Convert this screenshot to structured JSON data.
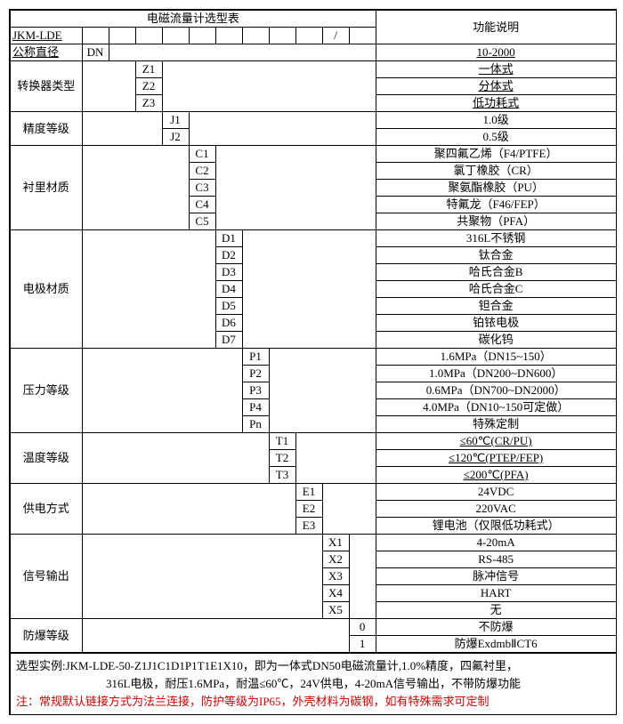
{
  "title": "电磁流量计选型表",
  "funcTitle": "功能说明",
  "model": "JKM-LDE",
  "slash": "/",
  "rows": [
    {
      "label": "公称直径",
      "labelUnd": true,
      "sub": "DN",
      "codes": [],
      "descs": [
        "10-2000"
      ],
      "col": 1
    },
    {
      "label": "转换器类型",
      "codes": [
        "Z1",
        "Z2",
        "Z3"
      ],
      "descs": [
        "一体式",
        "分体式",
        "低功耗式"
      ],
      "col": 2
    },
    {
      "label": "精度等级",
      "codes": [
        "J1",
        "J2"
      ],
      "descs": [
        "1.0级",
        "0.5级"
      ],
      "col": 3
    },
    {
      "label": "衬里材质",
      "codes": [
        "C1",
        "C2",
        "C3",
        "C4",
        "C5"
      ],
      "descs": [
        "聚四氟乙烯（F4/PTFE）",
        "氯丁橡胶（CR）",
        "聚氨酯橡胶（PU）",
        "特氟龙（F46/FEP）",
        "共聚物（PFA）"
      ],
      "col": 4
    },
    {
      "label": "电极材质",
      "codes": [
        "D1",
        "D2",
        "D3",
        "D4",
        "D5",
        "D6",
        "D7"
      ],
      "descs": [
        "316L不锈钢",
        "钛合金",
        "哈氏合金B",
        "哈氏合金C",
        "钽合金",
        "铂铱电极",
        "碳化钨"
      ],
      "col": 5
    },
    {
      "label": "压力等级",
      "codes": [
        "P1",
        "P2",
        "P3",
        "P4",
        "Pn"
      ],
      "descs": [
        "1.6MPa（DN15~150）",
        "1.0MPa（DN200~DN600）",
        "0.6MPa（DN700~DN2000）",
        "4.0MPa（DN10~150可定做）",
        "特殊定制"
      ],
      "col": 6
    },
    {
      "label": "温度等级",
      "codes": [
        "T1",
        "T2",
        "T3"
      ],
      "descs": [
        "≤60℃(CR/PU)",
        "≤120℃(PTEP/FEP)",
        "≤200℃(PFA)"
      ],
      "col": 7
    },
    {
      "label": "供电方式",
      "codes": [
        "E1",
        "E2",
        "E3"
      ],
      "descs": [
        "24VDC",
        "220VAC",
        "锂电池（仅限低功耗式）"
      ],
      "col": 8
    },
    {
      "label": "信号输出",
      "codes": [
        "X1",
        "X2",
        "X3",
        "X4",
        "X5"
      ],
      "descs": [
        "4-20mA",
        "RS-485",
        "脉冲信号",
        "HART",
        "无"
      ],
      "col": 9
    },
    {
      "label": "防爆等级",
      "codes": [
        "0",
        "1"
      ],
      "descs": [
        "不防爆",
        "防爆ExdmbⅡCT6"
      ],
      "col": 10
    }
  ],
  "footer": {
    "l1": "选型实例:JKM-LDE-50-Z1J1C1D1P1T1E1X10，即为一体式DN50电磁流量计,1.0%精度，四氟衬里，",
    "l2": "316L电极，耐压1.6MPa，耐温≤60℃，24V供电，4-20mA信号输出，不带防爆功能",
    "l3": "注：常规默认链接方式为法兰连接，防护等级为IP65，外壳材料为碳钢，如有特殊需求可定制"
  }
}
